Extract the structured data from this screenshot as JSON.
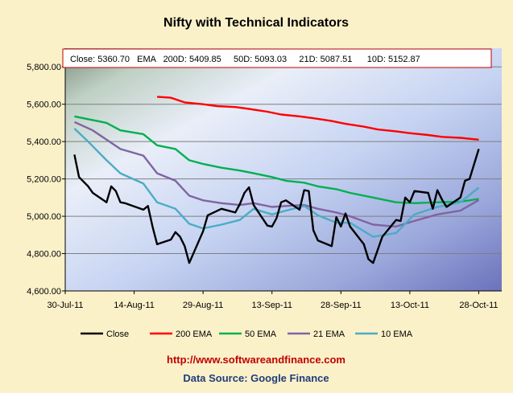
{
  "chart_data": {
    "type": "line",
    "title": "Nifty with Technical Indicators",
    "info_box": {
      "text": "Close: 5360.70   EMA   200D: 5409.85     50D: 5093.03     21D: 5087.51      10D: 5152.87"
    },
    "ylim": [
      4600,
      5900
    ],
    "yticks": [
      "4,600.00",
      "4,800.00",
      "5,000.00",
      "5,200.00",
      "5,400.00",
      "5,600.00",
      "5,800.00"
    ],
    "xlim": [
      "2011-07-30",
      "2011-11-02"
    ],
    "xticks": [
      {
        "date": "2011-07-30",
        "label": "30-Jul-11"
      },
      {
        "date": "2011-08-14",
        "label": "14-Aug-11"
      },
      {
        "date": "2011-08-29",
        "label": "29-Aug-11"
      },
      {
        "date": "2011-09-13",
        "label": "13-Sep-11"
      },
      {
        "date": "2011-09-28",
        "label": "28-Sep-11"
      },
      {
        "date": "2011-10-13",
        "label": "13-Oct-11"
      },
      {
        "date": "2011-10-28",
        "label": "28-Oct-11"
      }
    ],
    "grid": true,
    "legend_position": "bottom",
    "series": [
      {
        "name": "Close",
        "color": "#000000",
        "points": [
          [
            "2011-08-01",
            5330
          ],
          [
            "2011-08-02",
            5210
          ],
          [
            "2011-08-04",
            5160
          ],
          [
            "2011-08-05",
            5125
          ],
          [
            "2011-08-08",
            5075
          ],
          [
            "2011-08-09",
            5160
          ],
          [
            "2011-08-10",
            5135
          ],
          [
            "2011-08-11",
            5075
          ],
          [
            "2011-08-12",
            5070
          ],
          [
            "2011-08-16",
            5035
          ],
          [
            "2011-08-17",
            5055
          ],
          [
            "2011-08-18",
            4945
          ],
          [
            "2011-08-19",
            4850
          ],
          [
            "2011-08-22",
            4875
          ],
          [
            "2011-08-23",
            4915
          ],
          [
            "2011-08-24",
            4890
          ],
          [
            "2011-08-25",
            4840
          ],
          [
            "2011-08-26",
            4750
          ],
          [
            "2011-08-29",
            4920
          ],
          [
            "2011-08-30",
            5005
          ],
          [
            "2011-09-02",
            5040
          ],
          [
            "2011-09-05",
            5020
          ],
          [
            "2011-09-06",
            5065
          ],
          [
            "2011-09-07",
            5125
          ],
          [
            "2011-09-08",
            5155
          ],
          [
            "2011-09-09",
            5060
          ],
          [
            "2011-09-12",
            4950
          ],
          [
            "2011-09-13",
            4945
          ],
          [
            "2011-09-14",
            4990
          ],
          [
            "2011-09-15",
            5075
          ],
          [
            "2011-09-16",
            5085
          ],
          [
            "2011-09-19",
            5035
          ],
          [
            "2011-09-20",
            5140
          ],
          [
            "2011-09-21",
            5135
          ],
          [
            "2011-09-22",
            4925
          ],
          [
            "2011-09-23",
            4870
          ],
          [
            "2011-09-26",
            4840
          ],
          [
            "2011-09-27",
            4995
          ],
          [
            "2011-09-28",
            4945
          ],
          [
            "2011-09-29",
            5015
          ],
          [
            "2011-09-30",
            4945
          ],
          [
            "2011-10-03",
            4850
          ],
          [
            "2011-10-04",
            4770
          ],
          [
            "2011-10-05",
            4750
          ],
          [
            "2011-10-07",
            4890
          ],
          [
            "2011-10-10",
            4980
          ],
          [
            "2011-10-11",
            4975
          ],
          [
            "2011-10-12",
            5100
          ],
          [
            "2011-10-13",
            5075
          ],
          [
            "2011-10-14",
            5135
          ],
          [
            "2011-10-17",
            5125
          ],
          [
            "2011-10-18",
            5040
          ],
          [
            "2011-10-19",
            5140
          ],
          [
            "2011-10-20",
            5090
          ],
          [
            "2011-10-21",
            5050
          ],
          [
            "2011-10-24",
            5100
          ],
          [
            "2011-10-25",
            5190
          ],
          [
            "2011-10-26",
            5200
          ],
          [
            "2011-10-28",
            5360
          ]
        ]
      },
      {
        "name": "200 EMA",
        "color": "#ff0000",
        "points": [
          [
            "2011-08-19",
            5640
          ],
          [
            "2011-08-22",
            5635
          ],
          [
            "2011-08-25",
            5610
          ],
          [
            "2011-08-29",
            5600
          ],
          [
            "2011-09-01",
            5590
          ],
          [
            "2011-09-05",
            5585
          ],
          [
            "2011-09-08",
            5575
          ],
          [
            "2011-09-12",
            5560
          ],
          [
            "2011-09-15",
            5545
          ],
          [
            "2011-09-19",
            5535
          ],
          [
            "2011-09-22",
            5525
          ],
          [
            "2011-09-26",
            5510
          ],
          [
            "2011-09-29",
            5495
          ],
          [
            "2011-10-03",
            5480
          ],
          [
            "2011-10-06",
            5465
          ],
          [
            "2011-10-10",
            5455
          ],
          [
            "2011-10-13",
            5445
          ],
          [
            "2011-10-17",
            5435
          ],
          [
            "2011-10-20",
            5425
          ],
          [
            "2011-10-24",
            5420
          ],
          [
            "2011-10-28",
            5410
          ]
        ]
      },
      {
        "name": "50 EMA",
        "color": "#00b050",
        "points": [
          [
            "2011-08-01",
            5535
          ],
          [
            "2011-08-04",
            5520
          ],
          [
            "2011-08-08",
            5500
          ],
          [
            "2011-08-11",
            5460
          ],
          [
            "2011-08-16",
            5440
          ],
          [
            "2011-08-19",
            5380
          ],
          [
            "2011-08-23",
            5360
          ],
          [
            "2011-08-26",
            5300
          ],
          [
            "2011-08-29",
            5280
          ],
          [
            "2011-09-02",
            5260
          ],
          [
            "2011-09-06",
            5245
          ],
          [
            "2011-09-09",
            5230
          ],
          [
            "2011-09-13",
            5210
          ],
          [
            "2011-09-16",
            5190
          ],
          [
            "2011-09-20",
            5180
          ],
          [
            "2011-09-23",
            5160
          ],
          [
            "2011-09-27",
            5145
          ],
          [
            "2011-09-30",
            5125
          ],
          [
            "2011-10-05",
            5100
          ],
          [
            "2011-10-10",
            5075
          ],
          [
            "2011-10-14",
            5070
          ],
          [
            "2011-10-19",
            5075
          ],
          [
            "2011-10-24",
            5078
          ],
          [
            "2011-10-28",
            5093
          ]
        ]
      },
      {
        "name": "21 EMA",
        "color": "#8064a2",
        "points": [
          [
            "2011-08-01",
            5505
          ],
          [
            "2011-08-05",
            5460
          ],
          [
            "2011-08-08",
            5410
          ],
          [
            "2011-08-11",
            5360
          ],
          [
            "2011-08-16",
            5325
          ],
          [
            "2011-08-19",
            5230
          ],
          [
            "2011-08-23",
            5190
          ],
          [
            "2011-08-26",
            5110
          ],
          [
            "2011-08-29",
            5085
          ],
          [
            "2011-09-02",
            5070
          ],
          [
            "2011-09-06",
            5060
          ],
          [
            "2011-09-09",
            5070
          ],
          [
            "2011-09-13",
            5050
          ],
          [
            "2011-09-16",
            5055
          ],
          [
            "2011-09-20",
            5060
          ],
          [
            "2011-09-23",
            5040
          ],
          [
            "2011-09-27",
            5020
          ],
          [
            "2011-09-30",
            5000
          ],
          [
            "2011-10-05",
            4955
          ],
          [
            "2011-10-10",
            4945
          ],
          [
            "2011-10-14",
            4975
          ],
          [
            "2011-10-19",
            5010
          ],
          [
            "2011-10-24",
            5030
          ],
          [
            "2011-10-28",
            5087
          ]
        ]
      },
      {
        "name": "10 EMA",
        "color": "#4bacc6",
        "points": [
          [
            "2011-08-01",
            5470
          ],
          [
            "2011-08-04",
            5400
          ],
          [
            "2011-08-08",
            5300
          ],
          [
            "2011-08-11",
            5230
          ],
          [
            "2011-08-16",
            5175
          ],
          [
            "2011-08-19",
            5075
          ],
          [
            "2011-08-23",
            5040
          ],
          [
            "2011-08-26",
            4960
          ],
          [
            "2011-08-29",
            4935
          ],
          [
            "2011-09-02",
            4955
          ],
          [
            "2011-09-06",
            4980
          ],
          [
            "2011-09-09",
            5040
          ],
          [
            "2011-09-13",
            5010
          ],
          [
            "2011-09-16",
            5030
          ],
          [
            "2011-09-20",
            5055
          ],
          [
            "2011-09-23",
            5005
          ],
          [
            "2011-09-27",
            4965
          ],
          [
            "2011-09-30",
            4965
          ],
          [
            "2011-10-05",
            4890
          ],
          [
            "2011-10-10",
            4910
          ],
          [
            "2011-10-14",
            5010
          ],
          [
            "2011-10-19",
            5050
          ],
          [
            "2011-10-24",
            5075
          ],
          [
            "2011-10-28",
            5153
          ]
        ]
      }
    ],
    "footer": {
      "url": "http://www.softwareandfinance.com",
      "source": "Data Source: Google Finance"
    }
  }
}
